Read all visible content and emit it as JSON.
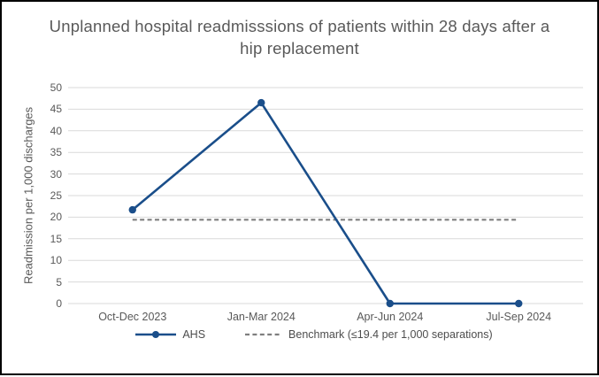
{
  "chart_data": {
    "type": "line",
    "title": "Unplanned hospital readmisssions of patients within 28 days after a hip replacement",
    "xlabel": "",
    "ylabel": "Readmission per 1,000 discharges",
    "categories": [
      "Oct-Dec 2023",
      "Jan-Mar 2024",
      "Apr-Jun 2024",
      "Jul-Sep 2024"
    ],
    "series": [
      {
        "name": "AHS",
        "values": [
          21.7,
          46.5,
          0,
          0
        ],
        "color": "#1a4e8a",
        "marker": "circle"
      }
    ],
    "benchmark": {
      "label": "Benchmark (≤19.4 per 1,000 separations)",
      "value": 19.4,
      "color": "#7f7f7f",
      "line_style": "dashed"
    },
    "ylim": [
      0,
      50
    ],
    "yticks": [
      0,
      5,
      10,
      15,
      20,
      25,
      30,
      35,
      40,
      45,
      50
    ],
    "grid": true,
    "gridline_color": "#d9d9d9",
    "legend_position": "bottom",
    "text_color": "#595959",
    "background": "#ffffff",
    "border_color": "#000000"
  }
}
